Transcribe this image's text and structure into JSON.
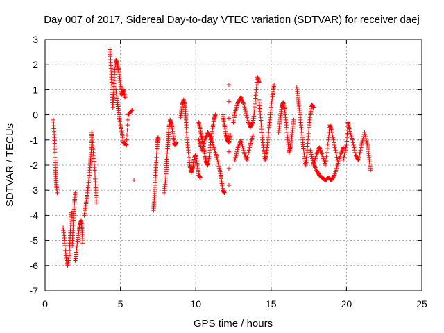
{
  "colors": {
    "points": "#ff0000",
    "grid": "#a0a0a0",
    "frame": "#000000",
    "background": "#ffffff"
  },
  "chart_data": {
    "type": "scatter",
    "title": "Day 007 of 2017, Sidereal Day-to-day VTEC variation (SDTVAR) for receiver daej",
    "xlabel": "GPS time / hours",
    "ylabel": "SDTVAR / TECUs",
    "xlim": [
      0,
      25
    ],
    "ylim": [
      -7,
      3
    ],
    "xticks": [
      0,
      5,
      10,
      15,
      20,
      25
    ],
    "yticks": [
      -7,
      -6,
      -5,
      -4,
      -3,
      -2,
      -1,
      0,
      1,
      2,
      3
    ],
    "marker": "plus",
    "grid": true,
    "series": [
      {
        "name": "SDTVAR",
        "segments": [
          [
            [
              0.55,
              -0.2
            ],
            [
              0.62,
              -0.9
            ],
            [
              0.66,
              -1.6
            ],
            [
              0.7,
              -2.2
            ],
            [
              0.74,
              -2.7
            ],
            [
              0.8,
              -3.1
            ]
          ],
          [
            [
              1.2,
              -4.5
            ],
            [
              1.3,
              -5.1
            ],
            [
              1.4,
              -5.7
            ],
            [
              1.5,
              -6.0
            ],
            [
              1.6,
              -5.6
            ],
            [
              1.65,
              -5.0
            ],
            [
              1.7,
              -4.4
            ],
            [
              1.75,
              -3.9
            ]
          ],
          [
            [
              1.8,
              -5.2
            ],
            [
              1.85,
              -4.6
            ],
            [
              1.9,
              -4.0
            ],
            [
              1.95,
              -3.5
            ],
            [
              2.0,
              -3.1
            ]
          ],
          [
            [
              2.0,
              -5.8
            ],
            [
              2.1,
              -5.3
            ],
            [
              2.2,
              -4.8
            ],
            [
              2.3,
              -4.4
            ],
            [
              2.4,
              -4.2
            ],
            [
              2.45,
              -4.6
            ],
            [
              2.5,
              -5.1
            ]
          ],
          [
            [
              2.6,
              -4.0
            ],
            [
              2.7,
              -3.6
            ],
            [
              2.8,
              -3.2
            ],
            [
              2.9,
              -2.6
            ],
            [
              3.0,
              -2.0
            ],
            [
              3.05,
              -1.5
            ],
            [
              3.1,
              -1.1
            ],
            [
              3.1,
              -0.7
            ],
            [
              3.2,
              -1.5
            ],
            [
              3.3,
              -2.2
            ],
            [
              3.35,
              -2.9
            ],
            [
              3.4,
              -3.5
            ]
          ],
          [
            [
              4.3,
              2.6
            ],
            [
              4.35,
              2.2
            ],
            [
              4.4,
              1.5
            ],
            [
              4.45,
              0.9
            ],
            [
              4.5,
              0.3
            ],
            [
              4.55,
              0.9
            ],
            [
              4.6,
              1.6
            ],
            [
              4.7,
              2.2
            ],
            [
              4.8,
              2.0
            ],
            [
              4.9,
              1.7
            ],
            [
              5.0,
              1.2
            ],
            [
              5.1,
              0.8
            ],
            [
              5.2,
              1.0
            ],
            [
              5.3,
              0.7
            ]
          ],
          [
            [
              4.7,
              1.0
            ],
            [
              4.8,
              0.5
            ],
            [
              4.9,
              0.0
            ],
            [
              5.0,
              -0.4
            ],
            [
              5.1,
              -0.7
            ],
            [
              5.2,
              -1.1
            ],
            [
              5.4,
              -1.2
            ],
            [
              5.5,
              0.0
            ],
            [
              5.8,
              0.2
            ]
          ],
          [
            [
              5.9,
              -2.6
            ]
          ],
          [
            [
              7.2,
              -3.8
            ],
            [
              7.25,
              -3.3
            ],
            [
              7.3,
              -2.8
            ],
            [
              7.35,
              -2.2
            ],
            [
              7.4,
              -1.6
            ],
            [
              7.45,
              -1.1
            ],
            [
              7.5,
              -0.9
            ]
          ],
          [
            [
              7.9,
              -3.1
            ],
            [
              8.0,
              -2.6
            ],
            [
              8.05,
              -2.1
            ],
            [
              8.1,
              -1.6
            ],
            [
              8.15,
              -1.1
            ],
            [
              8.2,
              -0.6
            ],
            [
              8.3,
              -0.2
            ],
            [
              8.4,
              -0.4
            ],
            [
              8.5,
              -0.8
            ],
            [
              8.6,
              -1.2
            ],
            [
              8.7,
              -1.1
            ]
          ],
          [
            [
              9.0,
              -0.1
            ],
            [
              9.1,
              0.4
            ],
            [
              9.2,
              0.6
            ],
            [
              9.3,
              0.3
            ],
            [
              9.35,
              -0.2
            ],
            [
              9.4,
              -0.8
            ],
            [
              9.5,
              -1.4
            ],
            [
              9.6,
              -2.0
            ],
            [
              9.7,
              -2.3
            ],
            [
              9.8,
              -2.1
            ],
            [
              9.9,
              -1.7
            ],
            [
              10.0,
              -1.6
            ],
            [
              10.1,
              -2.0
            ],
            [
              10.2,
              -2.4
            ],
            [
              10.3,
              -2.5
            ]
          ],
          [
            [
              10.2,
              -0.3
            ],
            [
              10.3,
              -0.6
            ],
            [
              10.4,
              -0.9
            ],
            [
              10.5,
              -1.2
            ],
            [
              10.6,
              -1.6
            ],
            [
              10.7,
              -1.9
            ],
            [
              10.8,
              -2.0
            ],
            [
              10.9,
              -1.6
            ],
            [
              11.0,
              -1.0
            ],
            [
              11.1,
              -0.6
            ],
            [
              11.2,
              -0.2
            ],
            [
              11.3,
              0.0
            ]
          ],
          [
            [
              10.2,
              -1.0
            ],
            [
              10.4,
              -1.4
            ],
            [
              10.6,
              -1.0
            ],
            [
              10.8,
              -0.7
            ],
            [
              11.0,
              -0.9
            ],
            [
              11.2,
              -1.3
            ],
            [
              11.4,
              -1.7
            ],
            [
              11.6,
              -2.2
            ],
            [
              11.7,
              -2.6
            ],
            [
              11.8,
              -3.0
            ],
            [
              11.9,
              -3.1
            ]
          ],
          [
            [
              11.8,
              0.0
            ],
            [
              11.9,
              -0.4
            ],
            [
              12.0,
              -0.8
            ],
            [
              12.1,
              -1.0
            ],
            [
              12.2,
              -1.1
            ],
            [
              12.3,
              -0.8
            ]
          ],
          [
            [
              12.2,
              1.2
            ],
            [
              12.2,
              -2.8
            ]
          ],
          [
            [
              12.5,
              -0.3
            ],
            [
              12.6,
              0.1
            ],
            [
              12.8,
              0.5
            ],
            [
              13.0,
              0.7
            ],
            [
              13.2,
              0.4
            ],
            [
              13.4,
              -0.1
            ],
            [
              13.6,
              -0.5
            ],
            [
              13.8,
              -0.3
            ],
            [
              13.9,
              0.2
            ],
            [
              14.0,
              0.9
            ],
            [
              14.1,
              1.5
            ],
            [
              14.2,
              1.3
            ]
          ],
          [
            [
              12.6,
              -1.8
            ],
            [
              12.8,
              -1.3
            ],
            [
              13.0,
              -1.0
            ],
            [
              13.2,
              -1.5
            ],
            [
              13.4,
              -1.8
            ],
            [
              13.6,
              -1.2
            ],
            [
              13.8,
              -0.8
            ]
          ],
          [
            [
              14.2,
              0.6
            ],
            [
              14.3,
              -0.1
            ],
            [
              14.4,
              -0.8
            ],
            [
              14.5,
              -1.4
            ],
            [
              14.6,
              -1.8
            ],
            [
              14.7,
              -1.5
            ],
            [
              14.8,
              -0.9
            ],
            [
              14.9,
              -0.3
            ],
            [
              15.0,
              0.3
            ],
            [
              15.1,
              0.8
            ],
            [
              15.2,
              1.2
            ]
          ],
          [
            [
              15.5,
              -0.7
            ],
            [
              15.6,
              -0.2
            ],
            [
              15.7,
              0.3
            ],
            [
              15.8,
              0.5
            ],
            [
              15.9,
              0.2
            ],
            [
              16.0,
              -0.4
            ],
            [
              16.1,
              -1.0
            ],
            [
              16.2,
              -1.5
            ],
            [
              16.3,
              -1.2
            ],
            [
              16.4,
              -0.7
            ],
            [
              16.5,
              -0.2
            ]
          ],
          [
            [
              16.7,
              1.1
            ],
            [
              16.8,
              0.6
            ],
            [
              16.9,
              0.1
            ],
            [
              17.0,
              -0.5
            ],
            [
              17.1,
              -1.1
            ],
            [
              17.2,
              -1.6
            ],
            [
              17.3,
              -2.0
            ],
            [
              17.4,
              -1.4
            ],
            [
              17.5,
              -0.6
            ],
            [
              17.6,
              0.0
            ],
            [
              17.7,
              0.4
            ],
            [
              17.8,
              0.3
            ]
          ],
          [
            [
              17.6,
              -1.4
            ],
            [
              17.8,
              -1.9
            ],
            [
              18.0,
              -2.2
            ],
            [
              18.2,
              -2.4
            ],
            [
              18.4,
              -2.5
            ],
            [
              18.6,
              -2.6
            ],
            [
              18.8,
              -2.5
            ],
            [
              19.0,
              -2.6
            ],
            [
              19.2,
              -2.4
            ],
            [
              19.4,
              -2.0
            ],
            [
              19.6,
              -1.6
            ],
            [
              19.8,
              -1.3
            ]
          ],
          [
            [
              17.8,
              -2.0
            ],
            [
              18.0,
              -1.6
            ],
            [
              18.2,
              -1.3
            ],
            [
              18.4,
              -1.6
            ],
            [
              18.6,
              -2.0
            ],
            [
              18.8,
              -1.0
            ],
            [
              18.9,
              -0.4
            ],
            [
              19.0,
              -0.6
            ],
            [
              19.2,
              -1.2
            ],
            [
              19.4,
              -1.8
            ]
          ],
          [
            [
              19.8,
              -1.8
            ],
            [
              20.0,
              -1.2
            ],
            [
              20.1,
              -0.3
            ],
            [
              20.2,
              -0.6
            ],
            [
              20.4,
              -1.0
            ],
            [
              20.6,
              -1.6
            ],
            [
              20.8,
              -1.8
            ],
            [
              21.0,
              -1.2
            ],
            [
              21.2,
              -0.7
            ],
            [
              21.4,
              -1.2
            ],
            [
              21.5,
              -1.7
            ],
            [
              21.6,
              -2.2
            ]
          ]
        ]
      }
    ]
  }
}
